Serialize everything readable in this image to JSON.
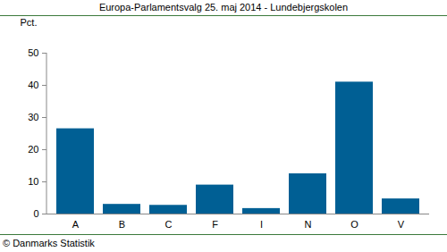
{
  "chart_data": {
    "type": "bar",
    "title": "Europa-Parlamentsvalg 25. maj 2014 - Lundebjergskolen",
    "y_label": "Pct.",
    "source": "© Danmarks Statistik",
    "categories": [
      "A",
      "B",
      "C",
      "F",
      "I",
      "N",
      "O",
      "V"
    ],
    "values": [
      26.5,
      3.0,
      2.7,
      9.0,
      1.7,
      12.5,
      41.0,
      4.7
    ],
    "color": "#005f94",
    "ylim": [
      0,
      50
    ],
    "yticks": [
      0,
      10,
      20,
      30,
      40,
      50
    ],
    "grid": false
  }
}
